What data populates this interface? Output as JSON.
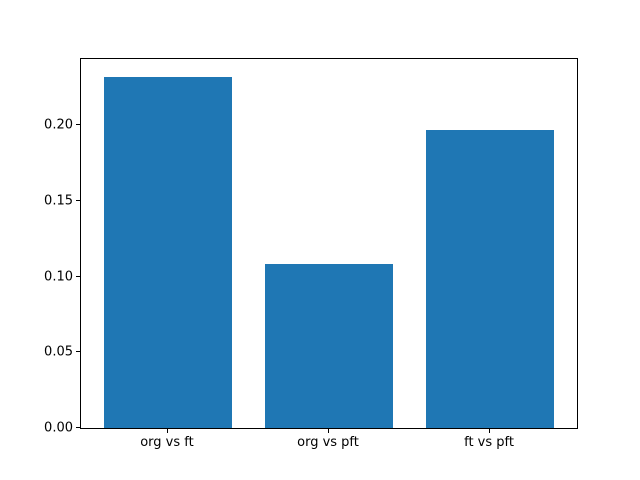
{
  "chart_data": {
    "type": "bar",
    "title": "",
    "xlabel": "",
    "ylabel": "",
    "categories": [
      "org vs ft",
      "org vs pft",
      "ft vs pft"
    ],
    "values": [
      0.232,
      0.108,
      0.197
    ],
    "yticks": [
      0,
      0.05,
      0.1,
      0.15,
      0.2
    ],
    "ytick_labels": [
      "0.00",
      "0.05",
      "0.10",
      "0.15",
      "0.20"
    ],
    "ylim": [
      0,
      0.2436
    ],
    "grid": false,
    "legend": null,
    "bar_color": "#1f77b4",
    "background_color": "#ffffff",
    "spine_color": "#000000",
    "bar_width_fraction": 0.8
  }
}
